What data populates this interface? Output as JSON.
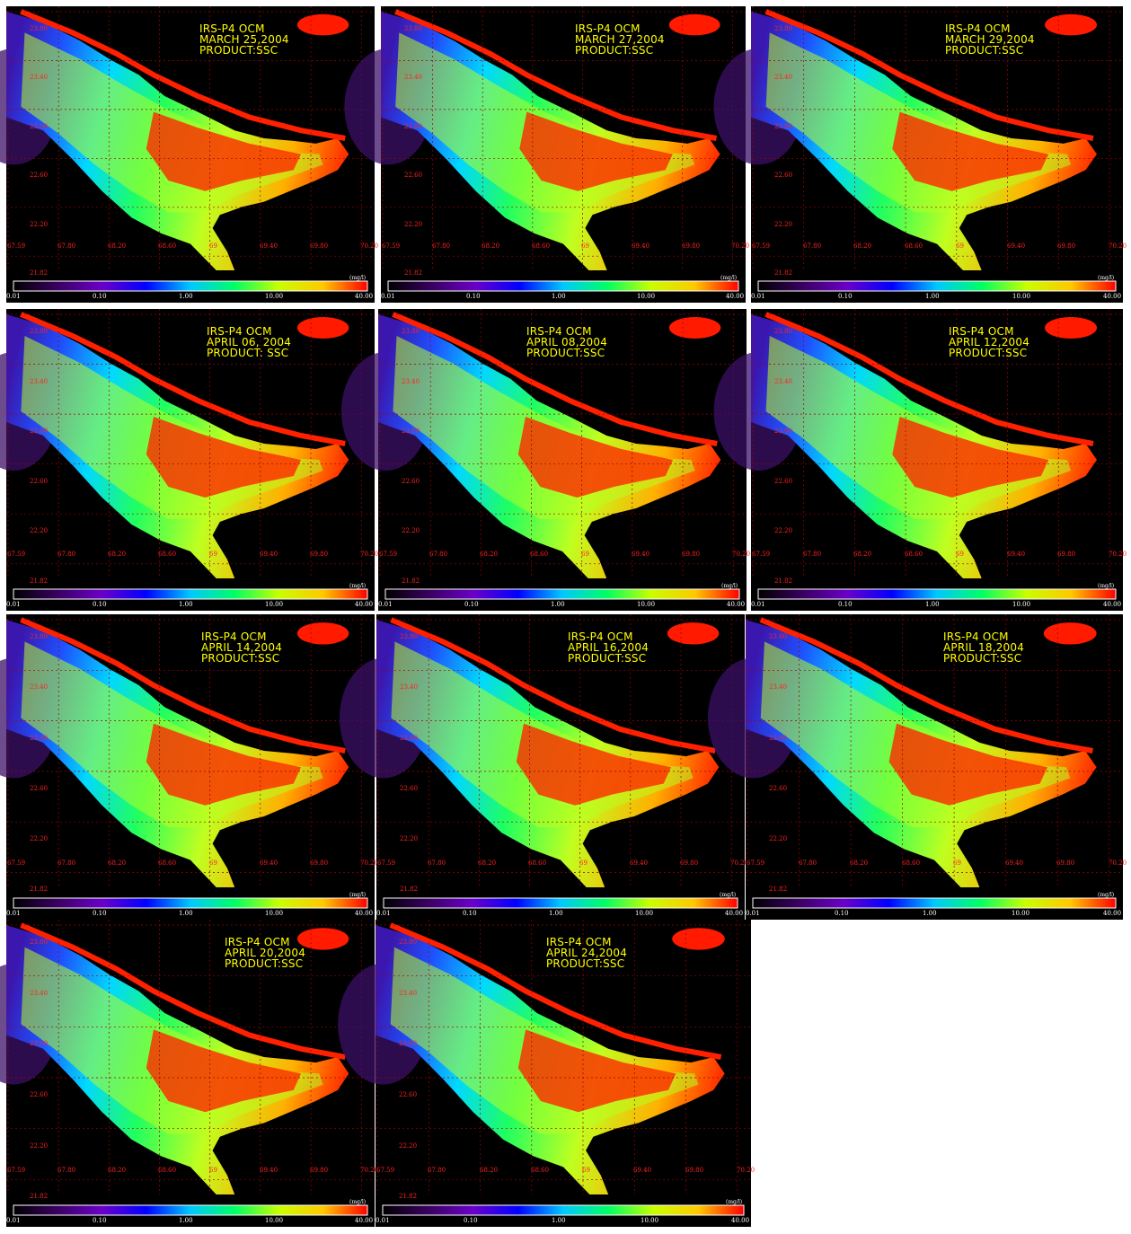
{
  "figure": {
    "colorbar": {
      "ticks": [
        "0.01",
        "0.10",
        "1.00",
        "10.00",
        "40.00"
      ],
      "unit": "(mg/l)",
      "colors": [
        "#000000",
        "#3a0060",
        "#6a00c8",
        "#0000ff",
        "#00c8ff",
        "#00ff64",
        "#c8ff00",
        "#ffc800",
        "#ff0000"
      ]
    },
    "lat_labels": [
      "23.80",
      "23.40",
      "23.00",
      "22.60",
      "22.20",
      "21.82"
    ],
    "lon_labels": [
      "67.59",
      "67.80",
      "68.20",
      "68.60",
      "69",
      "69.40",
      "69.80",
      "70.20"
    ],
    "panels": [
      {
        "title": "IRS-P4 OCM",
        "date": "MARCH 25,2004",
        "product": "PRODUCT:SSC"
      },
      {
        "title": "IRS-P4 OCM",
        "date": "MARCH 27,2004",
        "product": "PRODUCT:SSC"
      },
      {
        "title": "IRS-P4 OCM",
        "date": "MARCH 29,2004",
        "product": "PRODUCT:SSC"
      },
      {
        "title": "IRS-P4 OCM",
        "date": "APRIL 06, 2004",
        "product": "PRODUCT: SSC"
      },
      {
        "title": "IRS-P4 OCM",
        "date": "APRIL 08,2004",
        "product": "PRODUCT:SSC"
      },
      {
        "title": "IRS-P4 OCM",
        "date": "APRIL 12,2004",
        "product": "PRODUCT:SSC"
      },
      {
        "title": "IRS-P4 OCM",
        "date": "APRIL 14,2004",
        "product": "PRODUCT:SSC"
      },
      {
        "title": "IRS-P4 OCM",
        "date": "APRIL 16,2004",
        "product": "PRODUCT:SSC"
      },
      {
        "title": "IRS-P4 OCM",
        "date": "APRIL 18,2004",
        "product": "PRODUCT:SSC"
      },
      {
        "title": "IRS-P4 OCM",
        "date": "APRIL 20,2004",
        "product": "PRODUCT:SSC"
      },
      {
        "title": "IRS-P4 OCM",
        "date": "APRIL 24,2004",
        "product": "PRODUCT:SSC"
      }
    ]
  }
}
